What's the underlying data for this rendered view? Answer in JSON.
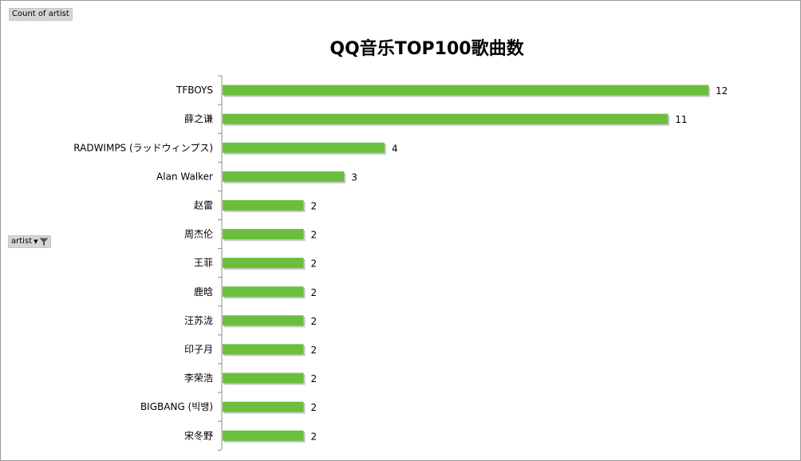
{
  "pivot": {
    "value_field": "Count of artist",
    "row_field": "artist"
  },
  "colors": {
    "bar": "#6bbf3c"
  },
  "icons": {
    "dropdown": "chevron-down-icon",
    "filter": "filter-icon"
  },
  "chart_data": {
    "type": "bar",
    "orientation": "horizontal",
    "title": "QQ音乐TOP100歌曲数",
    "categories": [
      "TFBOYS",
      "薛之谦",
      "RADWIMPS (ラッドウィンプス)",
      "Alan Walker",
      "赵雷",
      "周杰伦",
      "王菲",
      "鹿晗",
      "汪苏泷",
      "印子月",
      "李荣浩",
      "BIGBANG (빅뱅)",
      "宋冬野"
    ],
    "values": [
      12,
      11,
      4,
      3,
      2,
      2,
      2,
      2,
      2,
      2,
      2,
      2,
      2
    ],
    "xlim": [
      0,
      12
    ],
    "grid": false,
    "legend": "none"
  }
}
